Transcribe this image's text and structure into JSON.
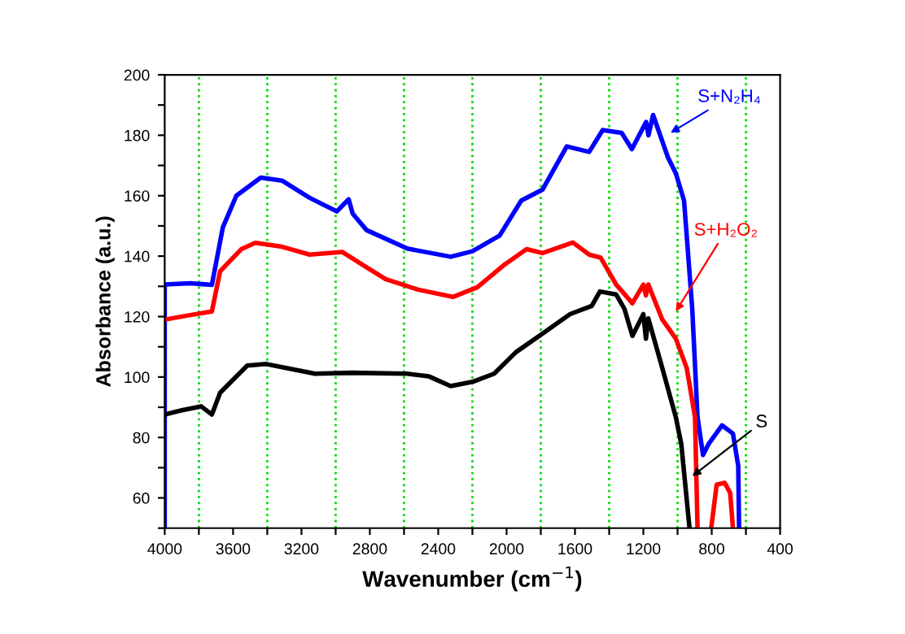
{
  "chart_data": {
    "type": "line",
    "xlabel": "Wavenumber (cm$^{−1}$)",
    "ylabel": "Absorbance (a.u.)",
    "xlim": [
      4000,
      400
    ],
    "ylim": [
      50,
      200
    ],
    "xticks": [
      4000,
      {
        "value": 3800,
        "label": null
      },
      3600,
      {
        "value": 3400,
        "label": null
      },
      3200,
      {
        "value": 3000,
        "label": null
      },
      2800,
      {
        "value": 2600,
        "label": null
      },
      2400,
      {
        "value": 2200,
        "label": null
      },
      2000,
      {
        "value": 1800,
        "label": null
      },
      1600,
      {
        "value": 1400,
        "label": null
      },
      1200,
      {
        "value": 1000,
        "label": null
      },
      800,
      {
        "value": 600,
        "label": null
      },
      400
    ],
    "yticks": [
      {
        "value": 50,
        "label": null
      },
      60,
      {
        "value": 70,
        "label": null
      },
      80,
      {
        "value": 90,
        "label": null
      },
      100,
      {
        "value": 110,
        "label": null
      },
      120,
      {
        "value": 130,
        "label": null
      },
      140,
      {
        "value": 150,
        "label": null
      },
      160,
      {
        "value": 170,
        "label": null
      },
      180,
      {
        "value": 190,
        "label": null
      },
      200
    ],
    "ref_lines": [
      {
        "axis": "x",
        "value": 3800,
        "color": "#00dd00",
        "line_style": "dotted"
      },
      {
        "axis": "x",
        "value": 3400,
        "color": "#00dd00",
        "line_style": "dotted"
      },
      {
        "axis": "x",
        "value": 3000,
        "color": "#00dd00",
        "line_style": "dotted"
      },
      {
        "axis": "x",
        "value": 2600,
        "color": "#00dd00",
        "line_style": "dotted"
      },
      {
        "axis": "x",
        "value": 2200,
        "color": "#00dd00",
        "line_style": "dotted"
      },
      {
        "axis": "x",
        "value": 1800,
        "color": "#00dd00",
        "line_style": "dotted"
      },
      {
        "axis": "x",
        "value": 1400,
        "color": "#00dd00",
        "line_style": "dotted"
      },
      {
        "axis": "x",
        "value": 1000,
        "color": "#00dd00",
        "line_style": "dotted"
      },
      {
        "axis": "x",
        "value": 600,
        "color": "#00dd00",
        "line_style": "dotted"
      }
    ],
    "series": [
      {
        "color": "#0000ff",
        "x": [
          4000,
          4000,
          3850,
          3724,
          3660,
          3581,
          3438,
          3314,
          3152,
          2993,
          2924,
          2900,
          2819,
          2581,
          2327,
          2200,
          2041,
          1914,
          1790,
          1648,
          1517,
          1438,
          1327,
          1267,
          1184,
          1170,
          1143,
          1057,
          1010,
          962,
          914,
          883,
          851,
          819,
          740,
          676,
          645,
          640
        ],
        "values": [
          50,
          130.6,
          131,
          130.5,
          149.5,
          160,
          166,
          165,
          159.3,
          154.8,
          158.8,
          154,
          148.6,
          142.5,
          139.8,
          141.6,
          146.8,
          158.4,
          162,
          176.3,
          174.5,
          181.7,
          180.8,
          175.4,
          184.4,
          180,
          186.7,
          172.8,
          167.4,
          158.4,
          122.6,
          86.7,
          74.2,
          77.8,
          84,
          81.3,
          70.6,
          50
        ]
      },
      {
        "color": "#ff0000",
        "x": [
          4000,
          3850,
          3724,
          3676,
          3552,
          3470,
          3314,
          3152,
          2962,
          2838,
          2708,
          2517,
          2314,
          2171,
          2010,
          1883,
          1790,
          1612,
          1517,
          1450,
          1359,
          1264,
          1200,
          1185,
          1171,
          1089,
          1010,
          946,
          898,
          883,
          870,
          803,
          771,
          724,
          692,
          676
        ],
        "values": [
          119,
          120.5,
          121.7,
          135,
          142.3,
          144.4,
          143.1,
          140.5,
          141.4,
          137,
          132.4,
          128.9,
          126.5,
          129.7,
          137.3,
          142.3,
          141,
          144.5,
          140.5,
          139.5,
          130.6,
          124.4,
          130.6,
          127,
          130.6,
          119,
          112.7,
          102.9,
          86.7,
          50,
          null,
          50,
          64.4,
          65,
          61.6,
          50
        ]
      },
      {
        "color": "#000000",
        "x": [
          4000,
          3900,
          3787,
          3724,
          3676,
          3597,
          3517,
          3406,
          3283,
          3121,
          2900,
          2581,
          2454,
          2327,
          2200,
          2073,
          1946,
          1787,
          1629,
          1502,
          1454,
          1359,
          1311,
          1264,
          1200,
          1185,
          1171,
          1089,
          1010,
          978,
          930
        ],
        "values": [
          87.6,
          89,
          90.3,
          87.6,
          94.8,
          99.3,
          103.8,
          104.3,
          102.9,
          101.1,
          101.4,
          101.1,
          100.2,
          97,
          98.4,
          101.1,
          108.2,
          114.5,
          120.8,
          123.5,
          128.3,
          127.3,
          122.6,
          113.6,
          120.8,
          112.7,
          119.4,
          102.9,
          86.7,
          77.8,
          50
        ]
      }
    ],
    "annotations": [
      {
        "text": "S+N₂H₄",
        "x": 1041,
        "y": 180.8
      },
      {
        "text": "S+H₂O₂",
        "x": 1010,
        "y": 121.7
      },
      {
        "text": "S",
        "x": 914,
        "y": 67.2
      }
    ]
  }
}
